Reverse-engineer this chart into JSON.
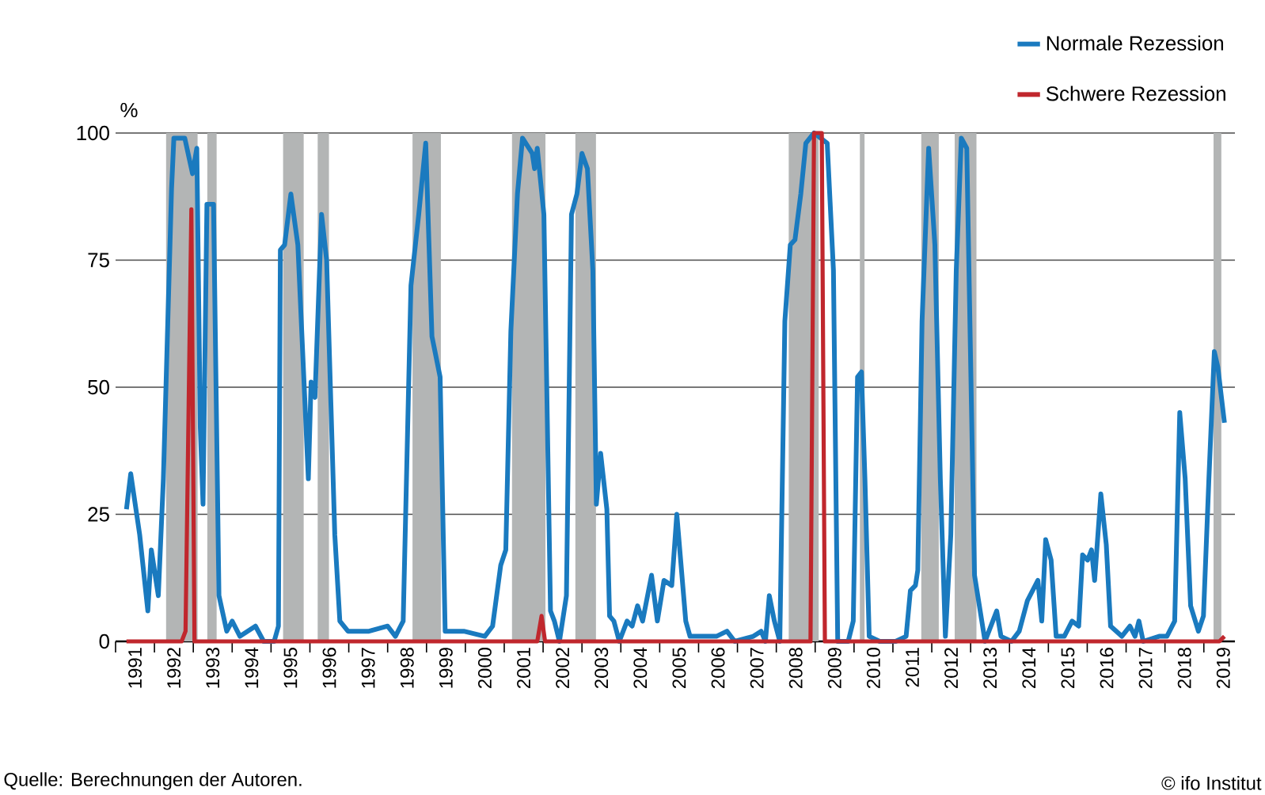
{
  "chart_data": {
    "type": "line",
    "ylabel": "%",
    "annotations": [
      "Quelle: Berechnungen der Autoren.",
      "© ifo Institut"
    ],
    "xlim": [
      1991,
      2019.8
    ],
    "ylim": [
      0,
      100
    ],
    "yticks": [
      0,
      25,
      50,
      75,
      100
    ],
    "xticks": [
      {
        "value": 1991,
        "label": null
      },
      {
        "value": 1992,
        "label": null
      },
      {
        "value": 1993,
        "label": null
      },
      {
        "value": 1994,
        "label": null
      },
      {
        "value": 1995,
        "label": null
      },
      {
        "value": 1996,
        "label": null
      },
      {
        "value": 1997,
        "label": null
      },
      {
        "value": 1998,
        "label": null
      },
      {
        "value": 1999,
        "label": null
      },
      {
        "value": 2000,
        "label": null
      },
      {
        "value": 2001,
        "label": null
      },
      {
        "value": 2002,
        "label": null
      },
      {
        "value": 2003,
        "label": null
      },
      {
        "value": 2004,
        "label": null
      },
      {
        "value": 2005,
        "label": null
      },
      {
        "value": 2006,
        "label": null
      },
      {
        "value": 2007,
        "label": null
      },
      {
        "value": 2008,
        "label": null
      },
      {
        "value": 2009,
        "label": null
      },
      {
        "value": 2010,
        "label": null
      },
      {
        "value": 2011,
        "label": null
      },
      {
        "value": 2012,
        "label": null
      },
      {
        "value": 2013,
        "label": null
      },
      {
        "value": 2014,
        "label": null
      },
      {
        "value": 2015,
        "label": null
      },
      {
        "value": 2016,
        "label": null
      },
      {
        "value": 2017,
        "label": null
      },
      {
        "value": 2018,
        "label": null
      },
      {
        "value": 2019,
        "label": null
      },
      {
        "value": 1991.5,
        "label": "1991"
      },
      {
        "value": 1992.5,
        "label": "1992"
      },
      {
        "value": 1993.5,
        "label": "1993"
      },
      {
        "value": 1994.5,
        "label": "1994"
      },
      {
        "value": 1995.5,
        "label": "1995"
      },
      {
        "value": 1996.5,
        "label": "1996"
      },
      {
        "value": 1997.5,
        "label": "1997"
      },
      {
        "value": 1998.5,
        "label": "1998"
      },
      {
        "value": 1999.5,
        "label": "1999"
      },
      {
        "value": 2000.5,
        "label": "2000"
      },
      {
        "value": 2001.5,
        "label": "2001"
      },
      {
        "value": 2002.5,
        "label": "2002"
      },
      {
        "value": 2003.5,
        "label": "2003"
      },
      {
        "value": 2004.5,
        "label": "2004"
      },
      {
        "value": 2005.5,
        "label": "2005"
      },
      {
        "value": 2006.5,
        "label": "2006"
      },
      {
        "value": 2007.5,
        "label": "2007"
      },
      {
        "value": 2008.5,
        "label": "2008"
      },
      {
        "value": 2009.5,
        "label": "2009"
      },
      {
        "value": 2010.5,
        "label": "2010"
      },
      {
        "value": 2011.5,
        "label": "2011"
      },
      {
        "value": 2012.5,
        "label": "2012"
      },
      {
        "value": 2013.5,
        "label": "2013"
      },
      {
        "value": 2014.5,
        "label": "2014"
      },
      {
        "value": 2015.5,
        "label": "2015"
      },
      {
        "value": 2016.5,
        "label": "2016"
      },
      {
        "value": 2017.5,
        "label": "2017"
      },
      {
        "value": 2018.5,
        "label": "2018"
      },
      {
        "value": 2019.5,
        "label": "2019"
      }
    ],
    "grid": "y",
    "legend": "top right",
    "bands": [
      {
        "axis": "x",
        "from": 1992.3,
        "to": 1993.11,
        "color": "#b3b5b5"
      },
      {
        "axis": "x",
        "from": 1993.36,
        "to": 1993.6,
        "color": "#b3b5b5"
      },
      {
        "axis": "x",
        "from": 1995.31,
        "to": 1995.84,
        "color": "#b3b5b5"
      },
      {
        "axis": "x",
        "from": 1996.2,
        "to": 1996.49,
        "color": "#b3b5b5"
      },
      {
        "axis": "x",
        "from": 1998.64,
        "to": 1999.37,
        "color": "#b3b5b5"
      },
      {
        "axis": "x",
        "from": 2001.2,
        "to": 2002.06,
        "color": "#b3b5b5"
      },
      {
        "axis": "x",
        "from": 2002.83,
        "to": 2003.36,
        "color": "#b3b5b5"
      },
      {
        "axis": "x",
        "from": 2008.32,
        "to": 2009.09,
        "color": "#b3b5b5"
      },
      {
        "axis": "x",
        "from": 2010.15,
        "to": 2010.27,
        "color": "#b3b5b5"
      },
      {
        "axis": "x",
        "from": 2011.73,
        "to": 2012.18,
        "color": "#b3b5b5"
      },
      {
        "axis": "x",
        "from": 2012.59,
        "to": 2013.15,
        "color": "#b3b5b5"
      },
      {
        "axis": "x",
        "from": 2019.25,
        "to": 2019.45,
        "color": "#b3b5b5"
      }
    ],
    "series": [
      {
        "name": "Normale Rezession",
        "color": "#1a7abf",
        "x": [
          1991.28,
          1991.39,
          1991.62,
          1991.83,
          1991.92,
          1992.1,
          1992.23,
          1992.44,
          1992.5,
          1992.78,
          1992.98,
          1993.09,
          1993.18,
          1993.25,
          1993.35,
          1993.52,
          1993.66,
          1993.86,
          1994.0,
          1994.2,
          1994.6,
          1994.81,
          1995.08,
          1995.19,
          1995.24,
          1995.35,
          1995.51,
          1995.69,
          1995.96,
          1996.03,
          1996.13,
          1996.3,
          1996.43,
          1996.64,
          1996.77,
          1996.98,
          1997.52,
          1998.0,
          1998.2,
          1998.4,
          1998.6,
          1998.8,
          1998.98,
          1999.14,
          1999.35,
          1999.48,
          1999.96,
          2000.5,
          2000.7,
          2000.91,
          2001.04,
          2001.17,
          2001.34,
          2001.47,
          2001.72,
          2001.78,
          2001.85,
          2002.02,
          2002.19,
          2002.29,
          2002.42,
          2002.6,
          2002.73,
          2002.87,
          2003.0,
          2003.14,
          2003.28,
          2003.37,
          2003.48,
          2003.64,
          2003.71,
          2003.82,
          2003.96,
          2004.16,
          2004.29,
          2004.43,
          2004.56,
          2004.79,
          2004.94,
          2005.11,
          2005.31,
          2005.44,
          2005.67,
          2005.78,
          2006.12,
          2006.46,
          2006.73,
          2006.93,
          2007.41,
          2007.61,
          2007.72,
          2007.82,
          2007.95,
          2008.09,
          2008.22,
          2008.36,
          2008.48,
          2008.63,
          2008.76,
          2008.97,
          2009.31,
          2009.47,
          2009.58,
          2009.85,
          2009.98,
          2010.09,
          2010.19,
          2010.28,
          2010.39,
          2010.66,
          2011.07,
          2011.34,
          2011.45,
          2011.58,
          2011.64,
          2011.75,
          2011.92,
          2012.08,
          2012.22,
          2012.35,
          2012.49,
          2012.63,
          2012.76,
          2012.9,
          2013.1,
          2013.37,
          2013.57,
          2013.67,
          2013.78,
          2014.05,
          2014.25,
          2014.46,
          2014.73,
          2014.83,
          2014.93,
          2015.07,
          2015.2,
          2015.41,
          2015.61,
          2015.78,
          2015.88,
          2016.01,
          2016.11,
          2016.19,
          2016.35,
          2016.49,
          2016.6,
          2016.89,
          2017.1,
          2017.23,
          2017.33,
          2017.44,
          2017.85,
          2018.05,
          2018.25,
          2018.38,
          2018.52,
          2018.66,
          2018.86,
          2018.99,
          2019.13,
          2019.27,
          2019.36,
          2019.53
        ],
        "values": [
          26,
          33,
          21,
          6,
          18,
          9,
          32,
          89,
          99,
          99,
          92,
          97,
          42,
          27,
          86,
          86,
          9,
          2,
          4,
          1,
          3,
          0,
          0,
          3,
          77,
          78,
          88,
          78,
          32,
          51,
          48,
          84,
          75,
          21,
          4,
          2,
          2,
          3,
          1,
          4,
          70,
          84,
          98,
          60,
          52,
          2,
          2,
          1,
          3,
          15,
          18,
          61,
          88,
          99,
          96,
          93,
          97,
          84,
          6,
          4,
          0,
          9,
          84,
          88,
          96,
          93,
          73,
          27,
          37,
          26,
          5,
          4,
          0,
          4,
          3,
          7,
          4,
          13,
          4,
          12,
          11,
          25,
          4,
          1,
          1,
          1,
          2,
          0,
          1,
          2,
          0,
          9,
          4,
          0,
          63,
          78,
          79,
          88,
          98,
          100,
          98,
          73,
          0,
          0,
          4,
          52,
          53,
          32,
          1,
          0,
          0,
          1,
          10,
          11,
          14,
          63,
          97,
          78,
          32,
          1,
          21,
          73,
          99,
          97,
          13,
          0,
          4,
          6,
          1,
          0,
          2,
          8,
          12,
          4,
          20,
          16,
          1,
          1,
          4,
          3,
          17,
          16,
          18,
          12,
          29,
          19,
          3,
          1,
          3,
          1,
          4,
          0,
          1,
          1,
          4,
          45,
          32,
          7,
          2,
          5,
          32,
          57,
          54,
          43
        ]
      },
      {
        "name": "Schwere Rezession",
        "color": "#c0272d",
        "x": [
          1991.28,
          1992.7,
          1992.8,
          1992.95,
          1993.03,
          2001.85,
          2001.96,
          2002.05,
          2008.88,
          2008.97,
          2009.17,
          2009.25,
          2019.4,
          2019.53
        ],
        "values": [
          0,
          0,
          2,
          85,
          0,
          0,
          5,
          0,
          0,
          100,
          100,
          0,
          0,
          1
        ]
      }
    ]
  }
}
